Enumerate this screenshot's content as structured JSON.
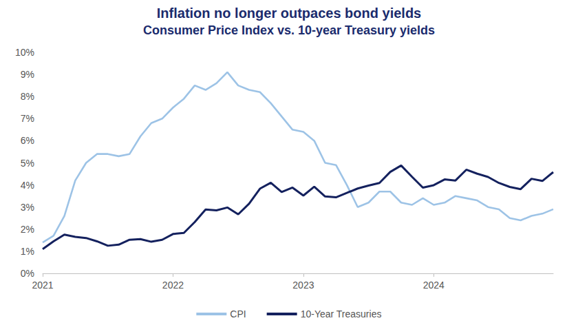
{
  "chart_data": {
    "type": "line",
    "title": "Inflation no longer outpaces bond yields",
    "subtitle": "Consumer Price Index vs. 10-year Treasury yields",
    "categories": [
      "2021",
      null,
      null,
      null,
      null,
      null,
      null,
      null,
      null,
      null,
      null,
      null,
      "2022",
      null,
      null,
      null,
      null,
      null,
      null,
      null,
      null,
      null,
      null,
      null,
      "2023",
      null,
      null,
      null,
      null,
      null,
      null,
      null,
      null,
      null,
      null,
      null,
      "2024",
      null,
      null,
      null,
      null,
      null,
      null,
      null,
      null,
      null,
      null,
      null
    ],
    "series": [
      {
        "name": "CPI",
        "color": "#9dc3e6",
        "line_style": "solid",
        "marker": "none",
        "values": [
          1.4,
          1.7,
          2.6,
          4.2,
          5.0,
          5.4,
          5.4,
          5.3,
          5.4,
          6.2,
          6.8,
          7.0,
          7.5,
          7.9,
          8.5,
          8.3,
          8.6,
          9.1,
          8.5,
          8.3,
          8.2,
          7.7,
          7.1,
          6.5,
          6.4,
          6.0,
          5.0,
          4.9,
          4.0,
          3.0,
          3.2,
          3.7,
          3.7,
          3.2,
          3.1,
          3.4,
          3.1,
          3.2,
          3.5,
          3.4,
          3.3,
          3.0,
          2.9,
          2.5,
          2.4,
          2.6,
          2.7,
          2.9
        ]
      },
      {
        "name": "10-Year Treasuries",
        "color": "#14215e",
        "line_style": "solid",
        "marker": "none",
        "values": [
          1.1,
          1.45,
          1.75,
          1.65,
          1.6,
          1.45,
          1.25,
          1.3,
          1.52,
          1.55,
          1.43,
          1.52,
          1.78,
          1.83,
          2.32,
          2.89,
          2.85,
          2.98,
          2.67,
          3.15,
          3.83,
          4.1,
          3.68,
          3.88,
          3.52,
          3.92,
          3.48,
          3.44,
          3.64,
          3.84,
          3.97,
          4.09,
          4.59,
          4.88,
          4.37,
          3.88,
          3.99,
          4.25,
          4.2,
          4.69,
          4.51,
          4.36,
          4.09,
          3.91,
          3.81,
          4.28,
          4.18,
          4.58
        ]
      }
    ],
    "ylim": [
      0,
      10
    ],
    "yticks": [
      {
        "value": 0,
        "label": "0%"
      },
      {
        "value": 1,
        "label": "1%"
      },
      {
        "value": 2,
        "label": "2%"
      },
      {
        "value": 3,
        "label": "3%"
      },
      {
        "value": 4,
        "label": "4%"
      },
      {
        "value": 5,
        "label": "5%"
      },
      {
        "value": 6,
        "label": "6%"
      },
      {
        "value": 7,
        "label": "7%"
      },
      {
        "value": 8,
        "label": "8%"
      },
      {
        "value": 9,
        "label": "9%"
      },
      {
        "value": 10,
        "label": "10%"
      }
    ],
    "grid": false,
    "legend": "bottom"
  }
}
